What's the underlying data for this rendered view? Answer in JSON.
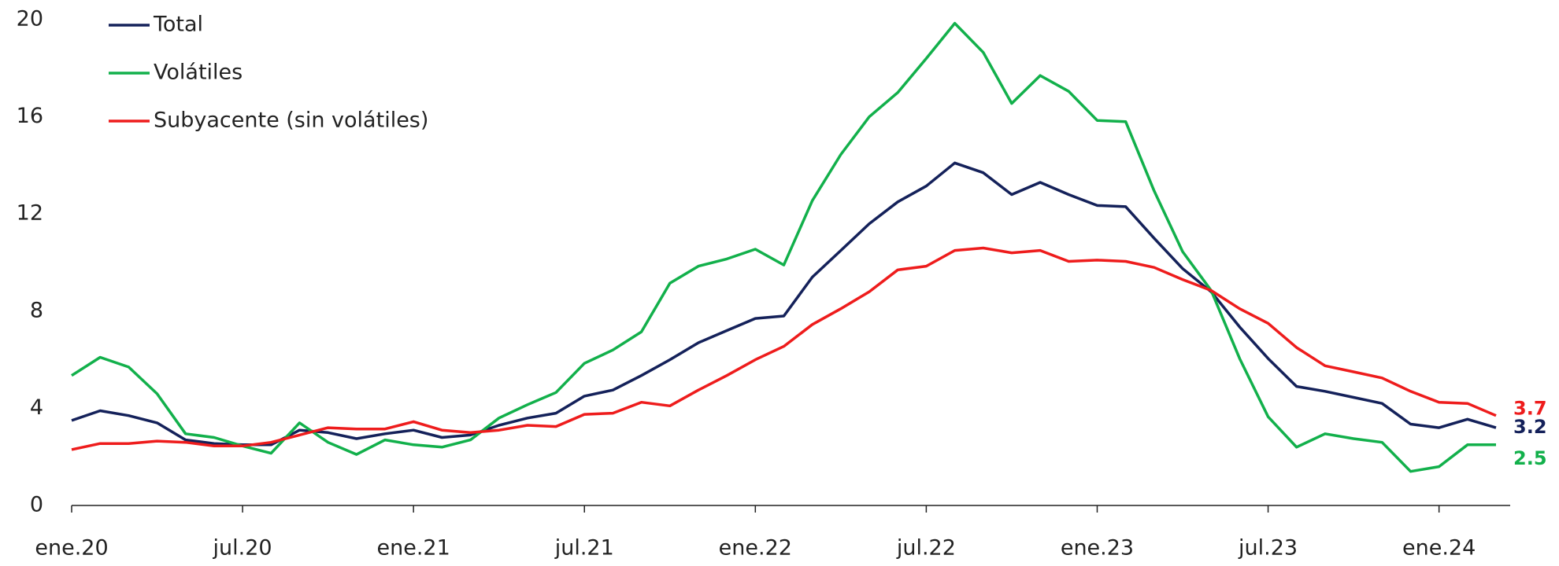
{
  "chart_data": {
    "type": "line",
    "categories": [
      "ene.20",
      null,
      null,
      null,
      null,
      null,
      "jul.20",
      null,
      null,
      null,
      null,
      null,
      "ene.21",
      null,
      null,
      null,
      null,
      null,
      "jul.21",
      null,
      null,
      null,
      null,
      null,
      "ene.22",
      null,
      null,
      null,
      null,
      null,
      "jul.22",
      null,
      null,
      null,
      null,
      null,
      "ene.23",
      null,
      null,
      null,
      null,
      null,
      "jul.23",
      null,
      null,
      null,
      null,
      null,
      "ene.24",
      null,
      null
    ],
    "series": [
      {
        "name": "Total",
        "color": "#14215a",
        "values": [
          3.5,
          3.9,
          3.7,
          3.4,
          2.7,
          2.55,
          2.5,
          2.5,
          3.1,
          3.0,
          2.75,
          2.95,
          3.1,
          2.8,
          2.9,
          3.3,
          3.6,
          3.8,
          4.5,
          4.75,
          5.35,
          6.0,
          6.7,
          7.2,
          7.7,
          7.8,
          9.4,
          10.5,
          11.6,
          12.5,
          13.15,
          14.1,
          13.7,
          12.8,
          13.3,
          12.8,
          12.35,
          12.3,
          11.0,
          9.75,
          8.8,
          7.35,
          6.05,
          4.9,
          4.7,
          4.45,
          4.2,
          3.35,
          3.2,
          3.55,
          3.2
        ]
      },
      {
        "name": "Volátiles",
        "color": "#12b04b",
        "values": [
          5.35,
          6.1,
          5.7,
          4.6,
          2.95,
          2.8,
          2.45,
          2.15,
          3.4,
          2.6,
          2.1,
          2.7,
          2.5,
          2.4,
          2.7,
          3.6,
          4.15,
          4.65,
          5.85,
          6.4,
          7.15,
          9.15,
          9.85,
          10.15,
          10.55,
          9.9,
          12.55,
          14.45,
          16.0,
          17.0,
          18.4,
          19.85,
          18.65,
          16.55,
          17.7,
          17.05,
          15.85,
          15.8,
          12.95,
          10.45,
          8.85,
          6.05,
          3.65,
          2.4,
          2.95,
          2.75,
          2.6,
          1.4,
          1.6,
          2.5,
          2.5
        ]
      },
      {
        "name": "Subyacente (sin volátiles)",
        "color": "#ee1c1c",
        "values": [
          2.3,
          2.55,
          2.55,
          2.65,
          2.6,
          2.45,
          2.45,
          2.6,
          2.9,
          3.2,
          3.15,
          3.15,
          3.45,
          3.1,
          3.0,
          3.1,
          3.3,
          3.25,
          3.75,
          3.8,
          4.25,
          4.1,
          4.75,
          5.35,
          6.0,
          6.55,
          7.45,
          8.1,
          8.8,
          9.7,
          9.85,
          10.5,
          10.6,
          10.4,
          10.5,
          10.05,
          10.1,
          10.05,
          9.8,
          9.3,
          8.85,
          8.1,
          7.5,
          6.5,
          5.75,
          5.5,
          5.25,
          4.7,
          4.25,
          4.2,
          3.7
        ]
      }
    ],
    "ylim": [
      0,
      20
    ],
    "yticks": [
      0,
      4,
      8,
      12,
      16,
      20
    ],
    "grid": false,
    "legend": "upper left"
  }
}
